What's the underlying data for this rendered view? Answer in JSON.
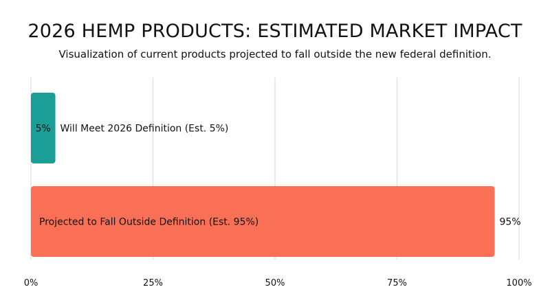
{
  "title": "2026 HEMP PRODUCTS: ESTIMATED MARKET IMPACT",
  "subtitle": "Visualization of current products projected to fall outside the new federal definition.",
  "colors": {
    "meet": "#1a9e97",
    "outside": "#f97057",
    "grid": "#d6d6d6"
  },
  "chart_data": {
    "type": "bar",
    "orientation": "horizontal",
    "title": "2026 HEMP PRODUCTS: ESTIMATED MARKET IMPACT",
    "subtitle": "Visualization of current products projected to fall outside the new federal definition.",
    "xlim": [
      0,
      100
    ],
    "x_ticks": [
      "0%",
      "25%",
      "50%",
      "75%",
      "100%"
    ],
    "x_tick_values": [
      0,
      25,
      50,
      75,
      100
    ],
    "grid": true,
    "bars": [
      {
        "label": "Will Meet 2026 Definition (Est. 5%)",
        "value": 5,
        "value_label": "5%",
        "color": "#1a9e97"
      },
      {
        "label": "Projected to Fall Outside Definition (Est. 95%)",
        "value": 95,
        "value_label": "95%",
        "color": "#f97057"
      }
    ]
  }
}
